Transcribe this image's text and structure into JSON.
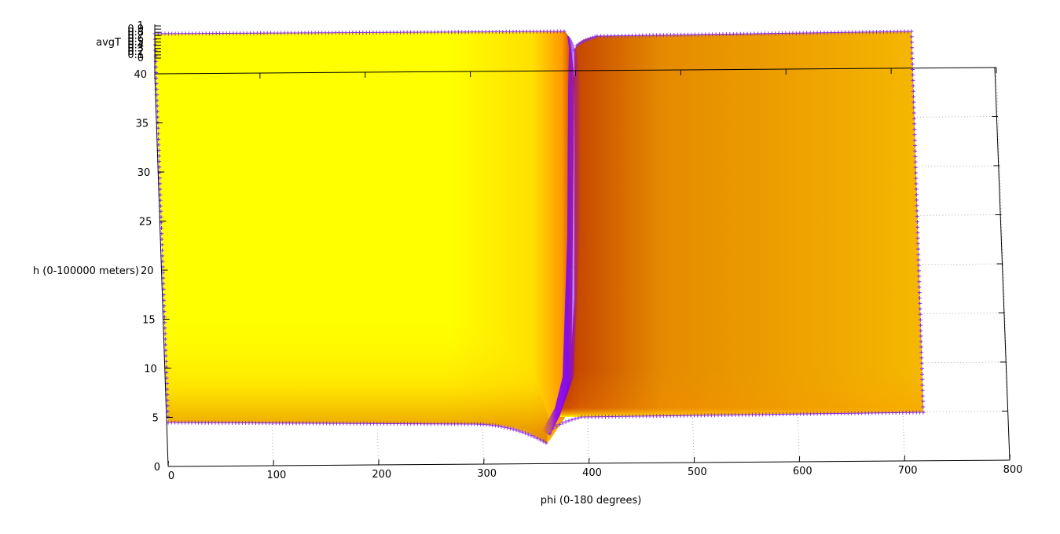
{
  "chart_data": {
    "type": "surface-3d",
    "xlabel": "phi (0-180 degrees)",
    "ylabel": "h (0-100000 meters)",
    "zlabel": "avgT",
    "xlim": [
      0,
      800
    ],
    "ylim": [
      0,
      40
    ],
    "zlim": [
      0,
      1
    ],
    "x_ticks": [
      0,
      100,
      200,
      300,
      400,
      500,
      600,
      700,
      800
    ],
    "y_ticks": [
      0,
      5,
      10,
      15,
      20,
      25,
      30,
      35,
      40
    ],
    "z_ticks": [
      "0",
      "0.1",
      "0.2",
      "0.3",
      "0.4",
      "0.5",
      "0.6",
      "0.7",
      "0.8",
      "0.9",
      "1"
    ],
    "grid": true,
    "surface_x_range": [
      0,
      720
    ],
    "surface_y_range": [
      0,
      40
    ],
    "discontinuity_x": 365,
    "colormap": [
      "#000000",
      "#7f00ff",
      "#c80000",
      "#ff8c00",
      "#ffff00"
    ],
    "colors": {
      "left_region": "#ffff00",
      "right_region": "#f2b000",
      "edge_markers": "#8a2be2"
    }
  }
}
